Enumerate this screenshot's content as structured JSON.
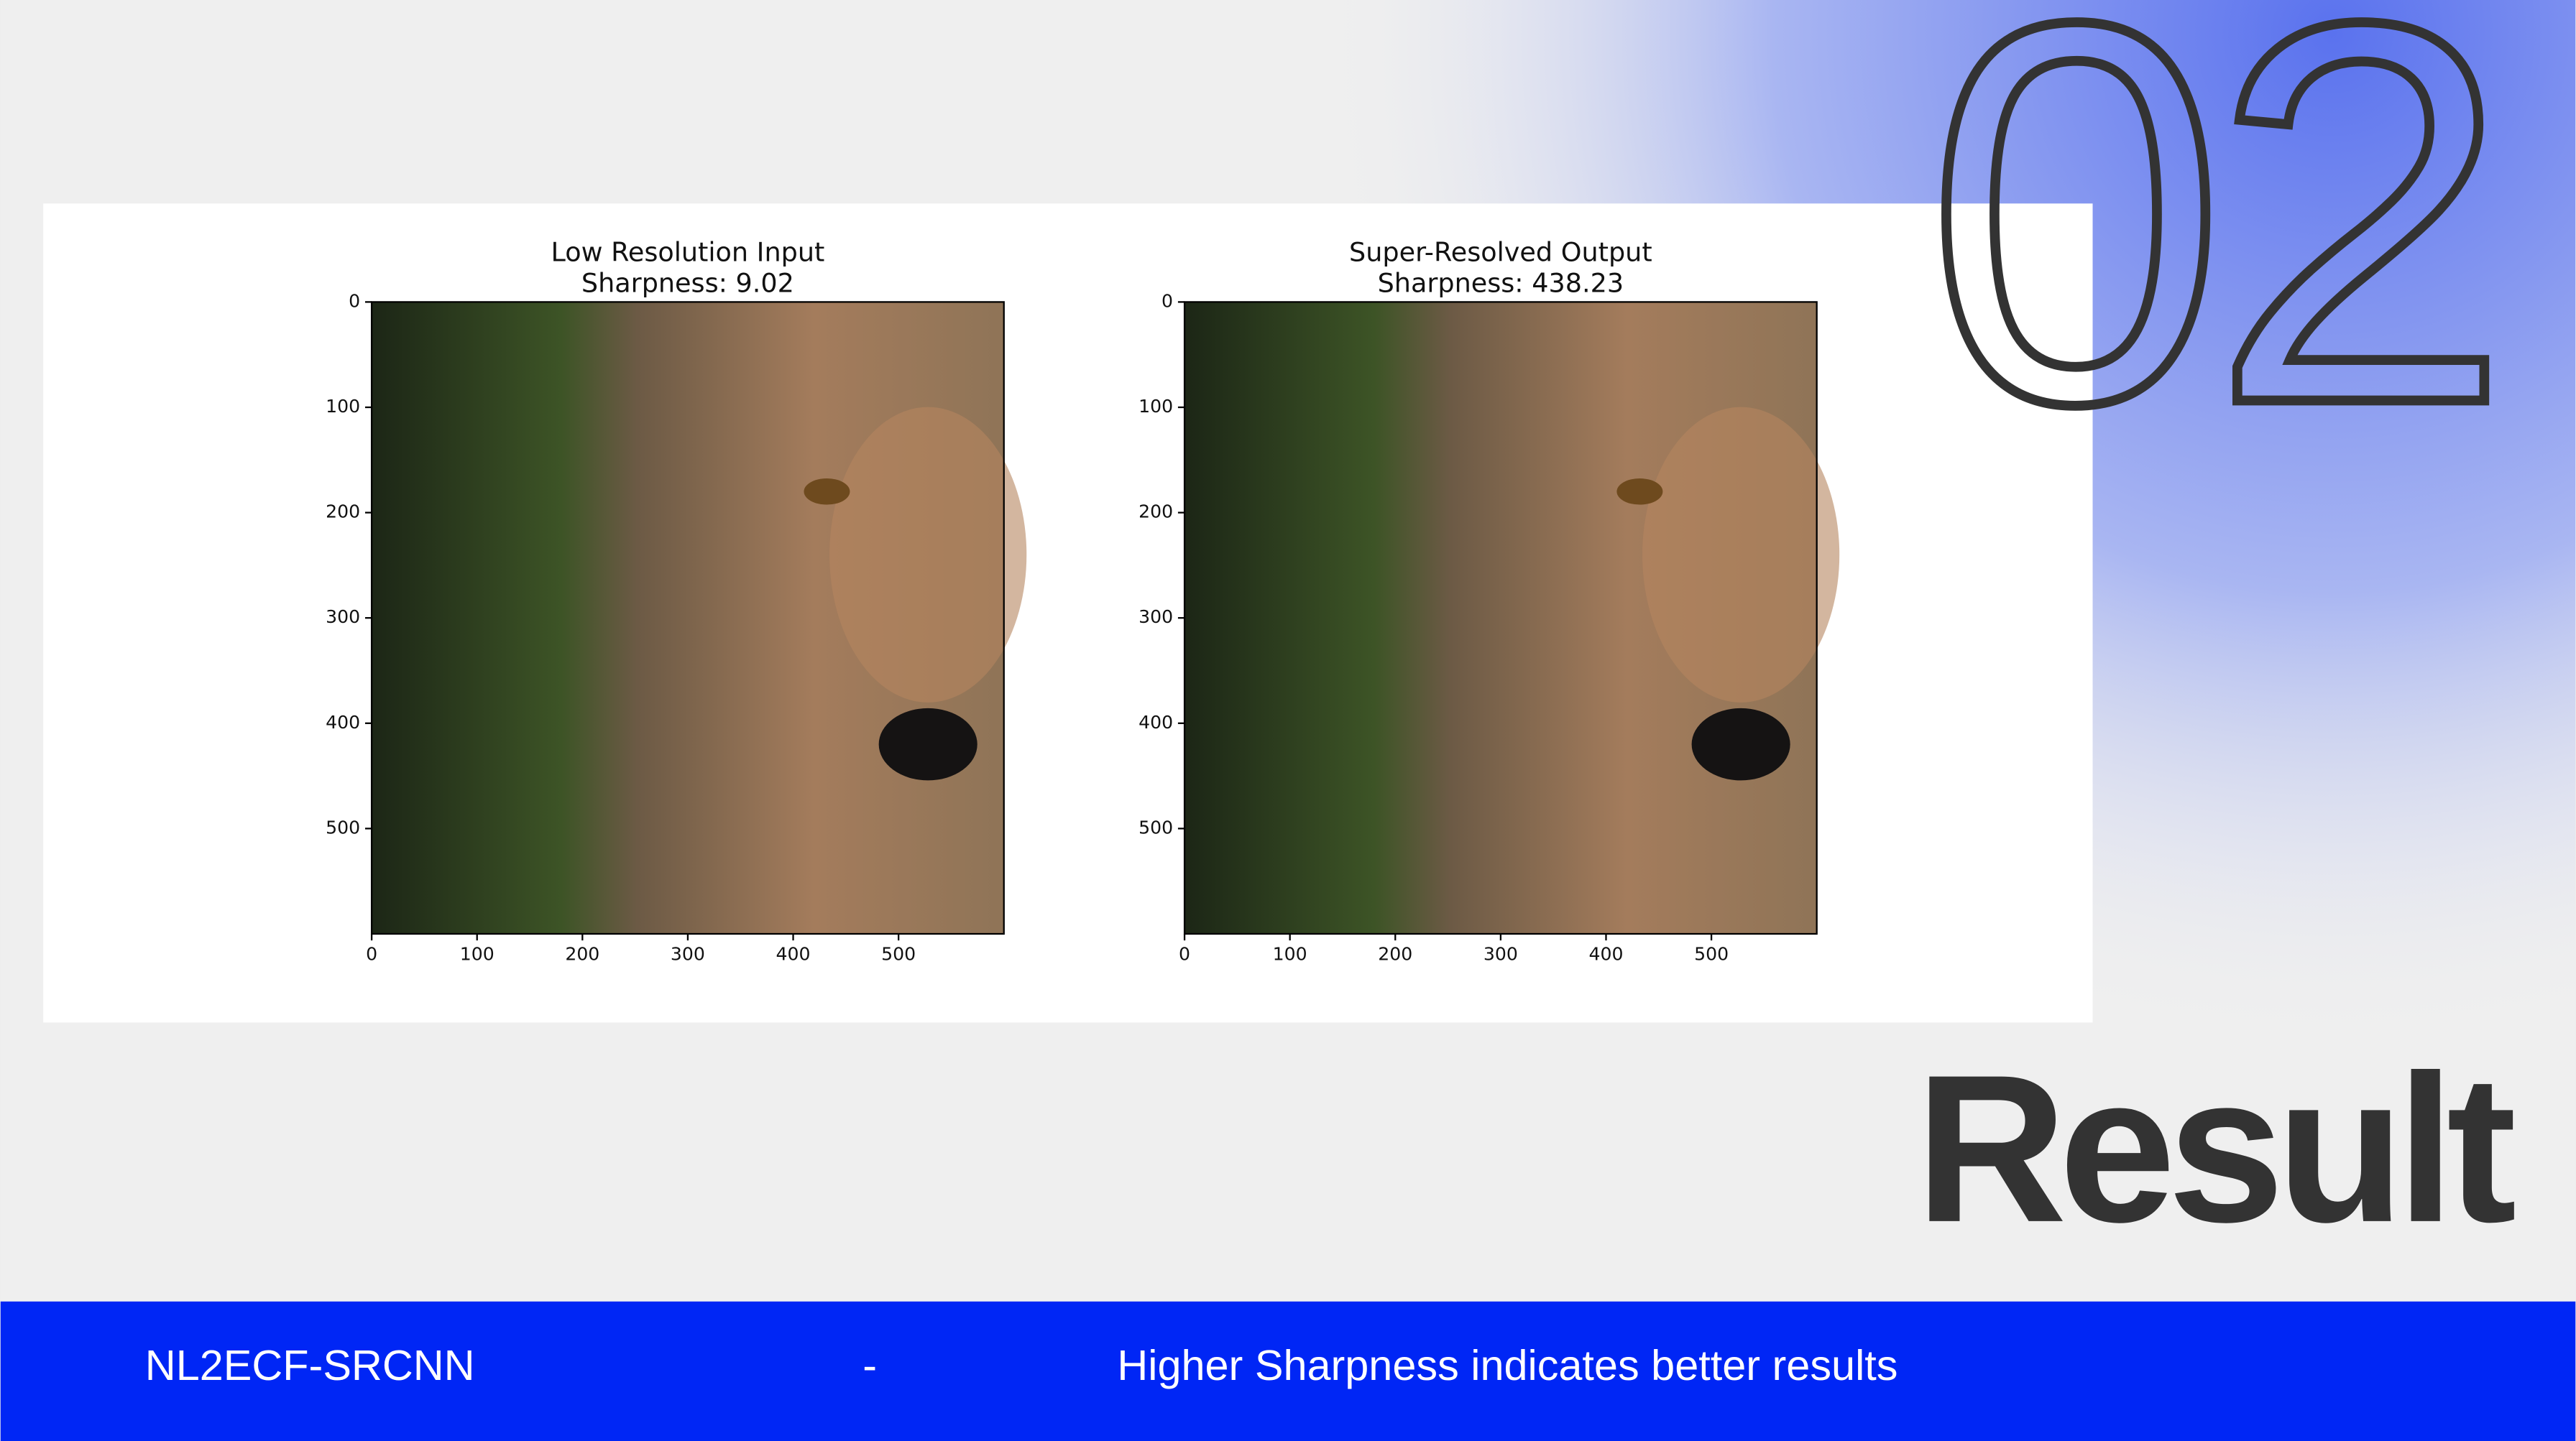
{
  "slide": {
    "number": "02",
    "heading": "Result",
    "figure": {
      "panels": [
        {
          "title": "Low Resolution Input",
          "subtitle": "Sharpness: 9.02",
          "xticks": [
            0,
            100,
            200,
            300,
            400,
            500
          ],
          "yticks": [
            0,
            100,
            200,
            300,
            400,
            500
          ]
        },
        {
          "title": "Super-Resolved Output",
          "subtitle": "Sharpness: 438.23",
          "xticks": [
            0,
            100,
            200,
            300,
            400,
            500
          ],
          "yticks": [
            0,
            100,
            200,
            300,
            400,
            500
          ]
        }
      ]
    },
    "footer": {
      "left": "NL2ECF-SRCNN",
      "separator": "-",
      "right": "Higher Sharpness indicates better results"
    }
  }
}
